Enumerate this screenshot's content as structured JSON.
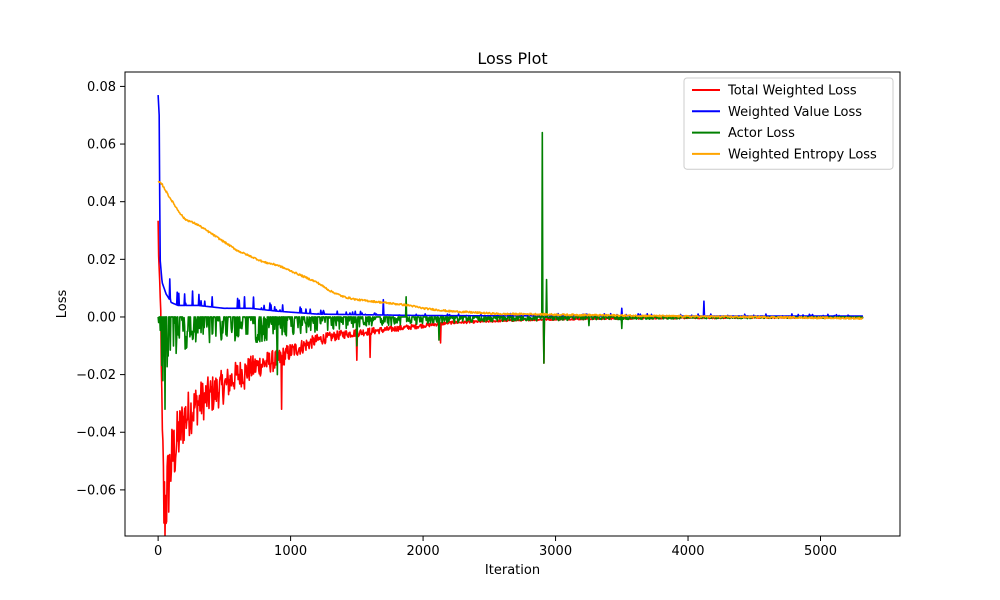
{
  "chart_data": {
    "type": "line",
    "title": "Loss Plot",
    "xlabel": "Iteration",
    "ylabel": "Loss",
    "xlim": [
      -250,
      5600
    ],
    "ylim": [
      -0.076,
      0.085
    ],
    "xticks": [
      0,
      1000,
      2000,
      3000,
      4000,
      5000
    ],
    "yticks": [
      -0.06,
      -0.04,
      -0.02,
      0.0,
      0.02,
      0.04,
      0.06,
      0.08
    ],
    "ytick_labels": [
      "−0.06",
      "−0.04",
      "−0.02",
      "0.00",
      "0.02",
      "0.04",
      "0.06",
      "0.08"
    ],
    "grid": false,
    "legend_position": "top-right",
    "x_max": 5320,
    "series": [
      {
        "name": "Total Weighted Loss",
        "color": "#ff0000",
        "anchors": [
          [
            0,
            0.031
          ],
          [
            10,
            0.012
          ],
          [
            20,
            0.002
          ],
          [
            30,
            -0.04
          ],
          [
            45,
            -0.068
          ],
          [
            70,
            -0.06
          ],
          [
            100,
            -0.05
          ],
          [
            150,
            -0.042
          ],
          [
            200,
            -0.035
          ],
          [
            300,
            -0.03
          ],
          [
            400,
            -0.027
          ],
          [
            500,
            -0.024
          ],
          [
            600,
            -0.02
          ],
          [
            700,
            -0.018
          ],
          [
            800,
            -0.016
          ],
          [
            900,
            -0.015
          ],
          [
            1000,
            -0.012
          ],
          [
            1100,
            -0.01
          ],
          [
            1200,
            -0.008
          ],
          [
            1400,
            -0.006
          ],
          [
            1600,
            -0.005
          ],
          [
            1800,
            -0.004
          ],
          [
            2000,
            -0.003
          ],
          [
            2200,
            -0.002
          ],
          [
            2500,
            -0.0015
          ],
          [
            2800,
            -0.001
          ],
          [
            3000,
            -0.0008
          ],
          [
            3500,
            -0.0005
          ],
          [
            4000,
            -0.0003
          ],
          [
            4500,
            -0.0002
          ],
          [
            5000,
            -0.0001
          ],
          [
            5320,
            -0.0001
          ]
        ],
        "spikes": [
          [
            2910,
            -0.016
          ],
          [
            2130,
            -0.009
          ],
          [
            930,
            -0.032
          ],
          [
            650,
            -0.025
          ],
          [
            1600,
            -0.014
          ],
          [
            1500,
            -0.015
          ]
        ]
      },
      {
        "name": "Weighted Value Loss",
        "color": "#0000ff",
        "anchors": [
          [
            0,
            0.077
          ],
          [
            8,
            0.07
          ],
          [
            15,
            0.02
          ],
          [
            30,
            0.012
          ],
          [
            60,
            0.008
          ],
          [
            100,
            0.005
          ],
          [
            150,
            0.004
          ],
          [
            300,
            0.004
          ],
          [
            500,
            0.003
          ],
          [
            700,
            0.003
          ],
          [
            900,
            0.002
          ],
          [
            1200,
            0.001
          ],
          [
            1500,
            0.0008
          ],
          [
            2000,
            0.0005
          ],
          [
            2500,
            0.0004
          ],
          [
            3000,
            0.0004
          ],
          [
            4000,
            0.0003
          ],
          [
            5000,
            0.0003
          ],
          [
            5320,
            0.0003
          ]
        ],
        "spikes": [
          [
            260,
            0.009
          ],
          [
            200,
            0.008
          ],
          [
            650,
            0.007
          ],
          [
            1700,
            0.006
          ],
          [
            2900,
            0.003
          ],
          [
            3500,
            0.003
          ],
          [
            4120,
            0.0055
          ],
          [
            1350,
            0.002
          ],
          [
            800,
            0.004
          ]
        ]
      },
      {
        "name": "Actor Loss",
        "color": "#008000",
        "anchors": [
          [
            0,
            0.0
          ],
          [
            20,
            -0.008
          ],
          [
            40,
            -0.018
          ],
          [
            80,
            -0.012
          ],
          [
            150,
            -0.008
          ],
          [
            300,
            -0.006
          ],
          [
            500,
            -0.005
          ],
          [
            800,
            -0.006
          ],
          [
            1000,
            -0.004
          ],
          [
            1300,
            -0.003
          ],
          [
            1600,
            -0.002
          ],
          [
            2000,
            -0.0015
          ],
          [
            2500,
            -0.001
          ],
          [
            3000,
            -0.0008
          ],
          [
            3500,
            -0.0006
          ],
          [
            4000,
            -0.0004
          ],
          [
            5000,
            -0.0003
          ],
          [
            5320,
            -0.0003
          ]
        ],
        "spikes": [
          [
            2900,
            0.064
          ],
          [
            2910,
            -0.016
          ],
          [
            2930,
            0.013
          ],
          [
            50,
            -0.032
          ],
          [
            900,
            -0.02
          ],
          [
            1500,
            -0.01
          ],
          [
            1870,
            0.007
          ],
          [
            2120,
            -0.008
          ],
          [
            3500,
            -0.004
          ],
          [
            3250,
            -0.003
          ]
        ]
      },
      {
        "name": "Weighted Entropy Loss",
        "color": "#ffa500",
        "anchors": [
          [
            0,
            0.047
          ],
          [
            30,
            0.046
          ],
          [
            80,
            0.042
          ],
          [
            150,
            0.037
          ],
          [
            200,
            0.034
          ],
          [
            300,
            0.032
          ],
          [
            400,
            0.029
          ],
          [
            500,
            0.026
          ],
          [
            600,
            0.023
          ],
          [
            700,
            0.021
          ],
          [
            800,
            0.019
          ],
          [
            900,
            0.018
          ],
          [
            1000,
            0.016
          ],
          [
            1100,
            0.014
          ],
          [
            1200,
            0.012
          ],
          [
            1300,
            0.009
          ],
          [
            1400,
            0.007
          ],
          [
            1500,
            0.006
          ],
          [
            1600,
            0.0055
          ],
          [
            1700,
            0.005
          ],
          [
            1800,
            0.0045
          ],
          [
            1900,
            0.004
          ],
          [
            2000,
            0.003
          ],
          [
            2200,
            0.002
          ],
          [
            2400,
            0.0015
          ],
          [
            2600,
            0.001
          ],
          [
            2800,
            0.001
          ],
          [
            3000,
            0.0008
          ],
          [
            3500,
            0.0005
          ],
          [
            4000,
            0.0002
          ],
          [
            4500,
            0.0
          ],
          [
            5000,
            -0.0003
          ],
          [
            5320,
            -0.0005
          ]
        ],
        "spikes": []
      }
    ]
  }
}
